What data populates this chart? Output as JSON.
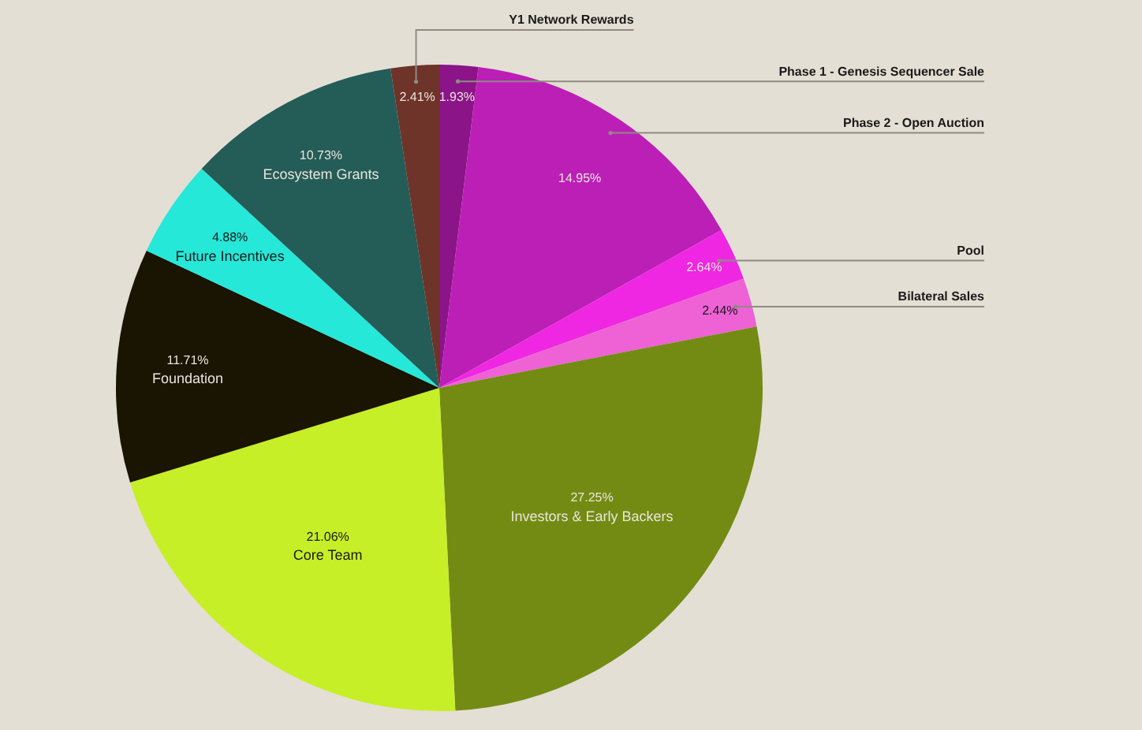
{
  "chart_data": {
    "type": "pie",
    "categories": [
      "Phase 1 - Genesis Sequencer Sale",
      "Phase 2 - Open Auction",
      "Pool",
      "Bilateral Sales",
      "Investors & Early Backers",
      "Core Team",
      "Foundation",
      "Future Incentives",
      "Ecosystem Grants",
      "Y1 Network Rewards"
    ],
    "values": [
      1.93,
      14.95,
      2.64,
      2.44,
      27.25,
      21.06,
      11.71,
      4.88,
      10.73,
      2.41
    ],
    "colors": [
      "#8a1488",
      "#bc1fb6",
      "#ef27e2",
      "#ee62d6",
      "#738b12",
      "#c6ef27",
      "#1a1402",
      "#25e8d8",
      "#245c58",
      "#6e3329"
    ],
    "value_labels": [
      "1.93%",
      "14.95%",
      "2.64%",
      "2.44%",
      "27.25%",
      "21.06%",
      "11.71%",
      "4.88%",
      "10.73%",
      "2.41%"
    ],
    "legend": false
  }
}
